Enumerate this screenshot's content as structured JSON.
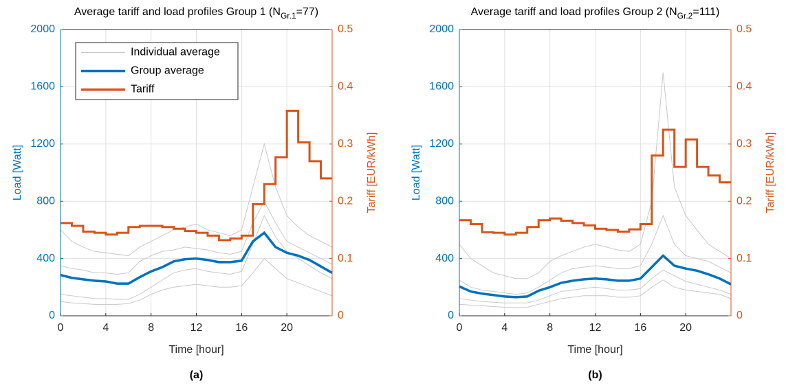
{
  "chart_data": [
    {
      "type": "line",
      "title": "Average tariff and load profiles Group 1 (N",
      "title_subscript": "Gr.1",
      "title_suffix": "=77)",
      "caption": "(a)",
      "xlabel": "Time [hour]",
      "ylabel": "Load [Watt]",
      "y2label": "Tariff [EUR/kWh]",
      "x": [
        0,
        1,
        2,
        3,
        4,
        5,
        6,
        7,
        8,
        9,
        10,
        11,
        12,
        13,
        14,
        15,
        16,
        17,
        18,
        19,
        20,
        21,
        22,
        23,
        24
      ],
      "xlim": [
        0,
        24
      ],
      "xticks": [
        0,
        4,
        8,
        12,
        16,
        20
      ],
      "ylim": [
        0,
        2000
      ],
      "yticks": [
        0,
        400,
        800,
        1200,
        1600,
        2000
      ],
      "y2lim": [
        0,
        0.5
      ],
      "y2ticks": [
        0,
        0.1,
        0.2,
        0.3,
        0.4,
        0.5
      ],
      "grid": true,
      "legend": "upper left",
      "series": [
        {
          "name": "Individual average",
          "color": "#c8c8c8",
          "values": [
            [
              600,
              520,
              480,
              450,
              440,
              430,
              420,
              480,
              520,
              560,
              600,
              620,
              640,
              600,
              580,
              560,
              600,
              900,
              1200,
              900,
              700,
              620,
              560,
              520,
              480
            ],
            [
              150,
              140,
              130,
              120,
              120,
              115,
              115,
              150,
              200,
              250,
              300,
              320,
              330,
              310,
              300,
              290,
              310,
              500,
              700,
              550,
              450,
              400,
              350,
              300,
              260
            ],
            [
              350,
              330,
              320,
              300,
              300,
              290,
              300,
              380,
              420,
              450,
              460,
              480,
              470,
              460,
              440,
              430,
              450,
              650,
              800,
              650,
              520,
              480,
              440,
              400,
              360
            ],
            [
              100,
              90,
              85,
              80,
              80,
              80,
              85,
              110,
              150,
              180,
              200,
              210,
              220,
              210,
              200,
              200,
              210,
              300,
              400,
              330,
              260,
              230,
              200,
              170,
              140
            ]
          ]
        },
        {
          "name": "Group average",
          "color": "#0072bd",
          "values": [
            285,
            265,
            255,
            245,
            240,
            225,
            225,
            270,
            310,
            340,
            380,
            395,
            400,
            390,
            375,
            375,
            385,
            520,
            580,
            480,
            440,
            420,
            390,
            345,
            300
          ]
        },
        {
          "name": "Tariff",
          "color": "#d95319",
          "axis": "y2",
          "step": true,
          "x": [
            0,
            1,
            2,
            3,
            4,
            5,
            6,
            7,
            8,
            9,
            10,
            11,
            12,
            13,
            14,
            15,
            16,
            17,
            18,
            19,
            20,
            21,
            22,
            23
          ],
          "values": [
            0.162,
            0.157,
            0.147,
            0.145,
            0.142,
            0.145,
            0.155,
            0.157,
            0.157,
            0.155,
            0.152,
            0.148,
            0.145,
            0.14,
            0.132,
            0.135,
            0.14,
            0.195,
            0.23,
            0.277,
            0.358,
            0.303,
            0.27,
            0.24
          ]
        }
      ]
    },
    {
      "type": "line",
      "title": "Average tariff and load profiles Group 2 (N",
      "title_subscript": "Gr.2",
      "title_suffix": "=111)",
      "caption": "(b)",
      "xlabel": "Time [hour]",
      "ylabel": "Load [Watt]",
      "y2label": "Tariff [EUR/kWh]",
      "x": [
        0,
        1,
        2,
        3,
        4,
        5,
        6,
        7,
        8,
        9,
        10,
        11,
        12,
        13,
        14,
        15,
        16,
        17,
        18,
        19,
        20,
        21,
        22,
        23,
        24
      ],
      "xlim": [
        0,
        24
      ],
      "xticks": [
        0,
        4,
        8,
        12,
        16,
        20
      ],
      "ylim": [
        0,
        2000
      ],
      "yticks": [
        0,
        400,
        800,
        1200,
        1600,
        2000
      ],
      "y2lim": [
        0,
        0.5
      ],
      "y2ticks": [
        0,
        0.1,
        0.2,
        0.3,
        0.4,
        0.5
      ],
      "grid": true,
      "series": [
        {
          "name": "Individual average",
          "color": "#c8c8c8",
          "values": [
            [
              500,
              400,
              350,
              300,
              280,
              260,
              260,
              300,
              380,
              420,
              450,
              480,
              500,
              480,
              460,
              450,
              500,
              800,
              1700,
              900,
              700,
              600,
              500,
              450,
              400
            ],
            [
              120,
              110,
              100,
              95,
              90,
              90,
              90,
              110,
              140,
              170,
              180,
              190,
              200,
              190,
              180,
              180,
              190,
              260,
              320,
              280,
              240,
              220,
              200,
              180,
              150
            ],
            [
              250,
              200,
              180,
              170,
              160,
              150,
              160,
              200,
              250,
              300,
              330,
              340,
              350,
              340,
              330,
              330,
              350,
              500,
              700,
              500,
              420,
              400,
              380,
              340,
              300
            ],
            [
              80,
              75,
              70,
              65,
              60,
              60,
              60,
              80,
              100,
              120,
              130,
              140,
              140,
              140,
              130,
              130,
              140,
              200,
              250,
              200,
              180,
              170,
              160,
              150,
              120
            ]
          ]
        },
        {
          "name": "Group average",
          "color": "#0072bd",
          "values": [
            205,
            170,
            155,
            145,
            135,
            130,
            135,
            175,
            200,
            230,
            245,
            255,
            260,
            255,
            245,
            245,
            260,
            340,
            420,
            350,
            330,
            315,
            290,
            260,
            220
          ]
        },
        {
          "name": "Tariff",
          "color": "#d95319",
          "axis": "y2",
          "step": true,
          "x": [
            0,
            1,
            2,
            3,
            4,
            5,
            6,
            7,
            8,
            9,
            10,
            11,
            12,
            13,
            14,
            15,
            16,
            17,
            18,
            19,
            20,
            21,
            22,
            23
          ],
          "values": [
            0.167,
            0.16,
            0.146,
            0.145,
            0.142,
            0.145,
            0.155,
            0.167,
            0.17,
            0.166,
            0.162,
            0.158,
            0.152,
            0.15,
            0.147,
            0.151,
            0.16,
            0.28,
            0.325,
            0.26,
            0.308,
            0.26,
            0.245,
            0.233
          ]
        }
      ]
    }
  ]
}
